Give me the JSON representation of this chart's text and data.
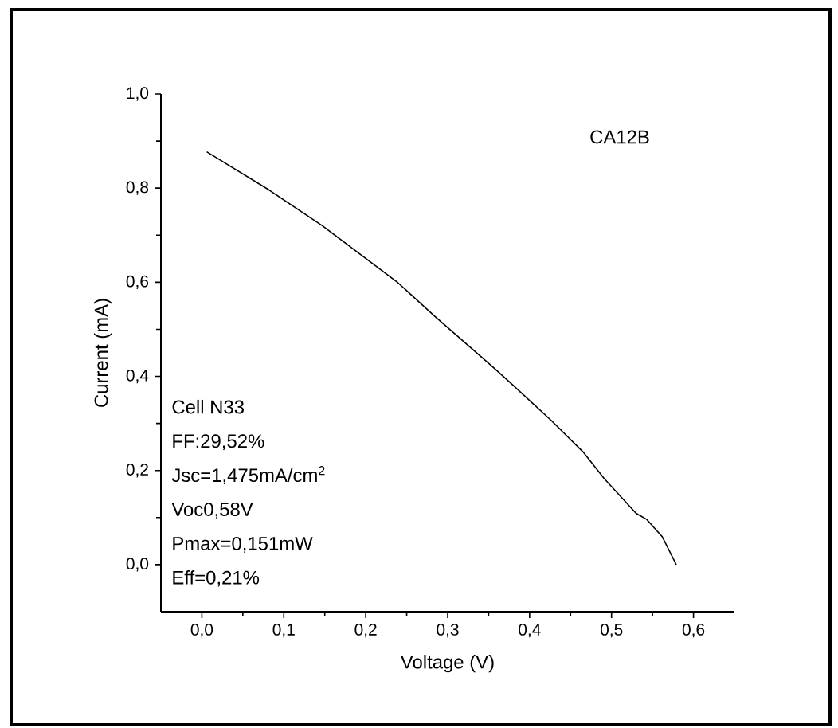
{
  "chart_data": {
    "type": "line",
    "xlabel": "Voltage (V)",
    "ylabel": "Current (mA)",
    "annotations": [
      "CA12B",
      "Cell N33",
      "FF:29,52%",
      "Jsc=1,475mA/cm$^{2}$",
      "Voc0,58V",
      "Pmax=0,151mW",
      "Eff=0,21%"
    ],
    "x": [
      0.006,
      0.082,
      0.147,
      0.238,
      0.284,
      0.355,
      0.375,
      0.426,
      0.465,
      0.491,
      0.53,
      0.543,
      0.562,
      0.579
    ],
    "series": [
      {
        "color": "#000000",
        "values": [
          0.877,
          0.796,
          0.72,
          0.601,
          0.528,
          0.42,
          0.389,
          0.307,
          0.24,
          0.183,
          0.109,
          0.096,
          0.059,
          0.0
        ]
      }
    ],
    "marker": "none",
    "line_style": "solid",
    "xlim": [
      -0.05,
      0.65
    ],
    "ylim": [
      -0.1,
      1.0
    ],
    "xticks": [
      {
        "value": 0,
        "label": "0,0"
      },
      {
        "value": 0.1,
        "label": "0,1"
      },
      {
        "value": 0.2,
        "label": "0,2"
      },
      {
        "value": 0.3,
        "label": "0,3"
      },
      {
        "value": 0.4,
        "label": "0,4"
      },
      {
        "value": 0.5,
        "label": "0,5"
      },
      {
        "value": 0.6,
        "label": "0,6"
      }
    ],
    "yticks": [
      {
        "value": 0,
        "label": "0,0"
      },
      {
        "value": 0.2,
        "label": "0,2"
      },
      {
        "value": 0.4,
        "label": "0,4"
      },
      {
        "value": 0.6,
        "label": "0,6"
      },
      {
        "value": 0.8,
        "label": "0,8"
      },
      {
        "value": 1.0,
        "label": "1,0"
      }
    ]
  }
}
